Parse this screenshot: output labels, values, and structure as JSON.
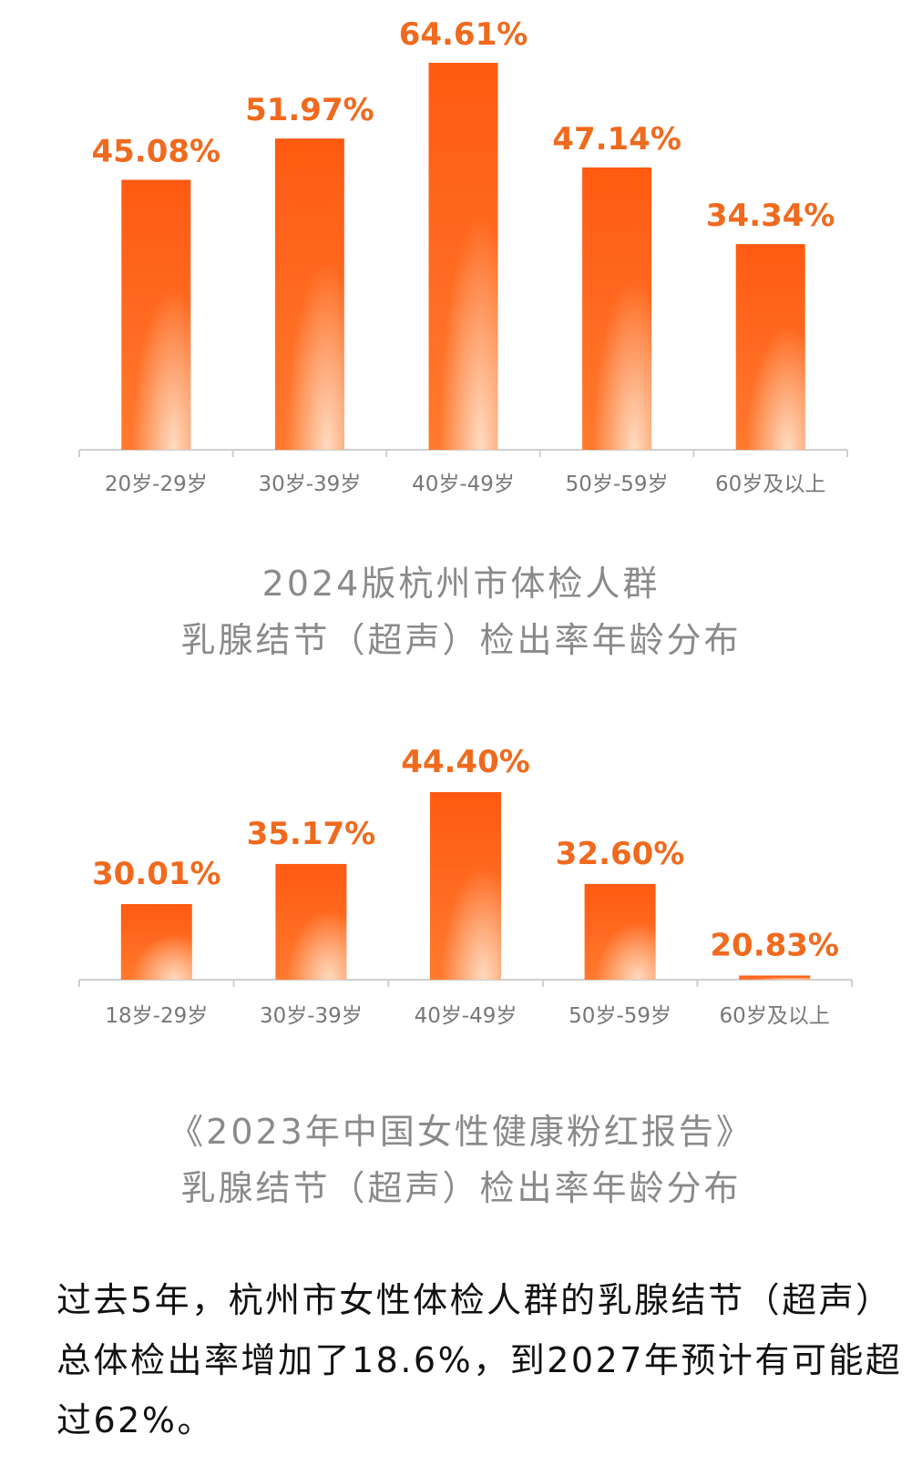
{
  "colors": {
    "bar_top": "#ff5a12",
    "bar_bottom": "#ff7a2e",
    "value_label": "#f06a1e",
    "axis": "#cfcfcf",
    "tick_text": "#777777"
  },
  "chart_data": [
    {
      "type": "bar",
      "categories": [
        "20岁-29岁",
        "30岁-39岁",
        "40岁-49岁",
        "50岁-59岁",
        "60岁及以上"
      ],
      "values": [
        45.08,
        51.97,
        64.61,
        47.14,
        34.34
      ],
      "value_labels": [
        "45.08%",
        "51.97%",
        "64.61%",
        "47.14%",
        "34.34%"
      ],
      "caption_lines": [
        "2024版杭州市体检人群",
        "乳腺结节（超声）检出率年龄分布"
      ],
      "grid": false
    },
    {
      "type": "bar",
      "categories": [
        "18岁-29岁",
        "30岁-39岁",
        "40岁-49岁",
        "50岁-59岁",
        "60岁及以上"
      ],
      "values": [
        30.01,
        35.17,
        44.4,
        32.6,
        20.83
      ],
      "value_labels": [
        "30.01%",
        "35.17%",
        "44.40%",
        "32.60%",
        "20.83%"
      ],
      "caption_lines": [
        "《2023年中国女性健康粉红报告》",
        "乳腺结节（超声）检出率年龄分布"
      ],
      "grid": false
    }
  ],
  "summary_text": "过去5年，杭州市女性体检人群的乳腺结节（超声）总体检出率增加了18.6%，到2027年预计有可能超过62%。"
}
